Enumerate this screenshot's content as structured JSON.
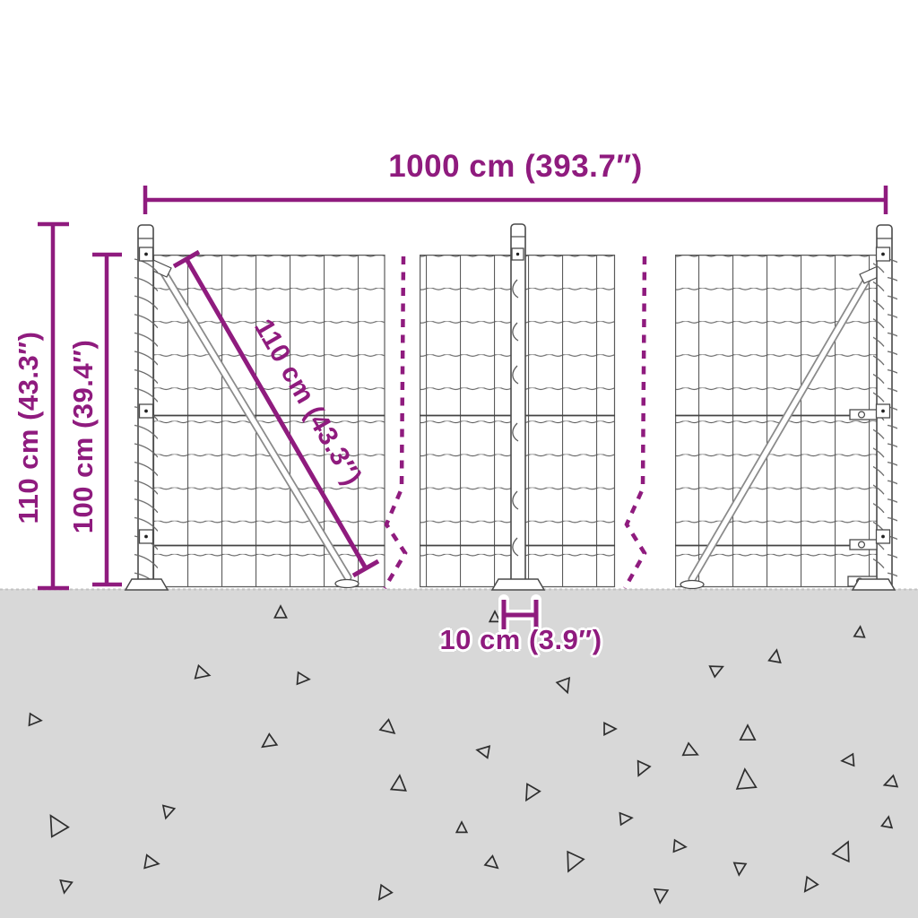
{
  "title": "Wire mesh fence dimension diagram",
  "colors": {
    "accent": "#8f1b7e",
    "ground": "#d8d8d8",
    "line_art": "#4a4a4a"
  },
  "labels": {
    "total_width": "1000 cm (393.7″)",
    "total_height": "110 cm (43.3″)",
    "mesh_height": "100 cm (39.4″)",
    "diagonal_brace": "110 cm (43.3″)",
    "base_plate_width": "10 cm (3.9″)"
  },
  "ground": {
    "triangles": [
      [
        313,
        684,
        8,
        0
      ],
      [
        552,
        689,
        7,
        0
      ],
      [
        225,
        751,
        9,
        105
      ],
      [
        337,
        757,
        8,
        95
      ],
      [
        630,
        764,
        9,
        160
      ],
      [
        865,
        733,
        8,
        10
      ],
      [
        959,
        706,
        7,
        5
      ],
      [
        799,
        747,
        8,
        65
      ],
      [
        38,
        803,
        8,
        95
      ],
      [
        433,
        812,
        9,
        130
      ],
      [
        300,
        828,
        9,
        235
      ],
      [
        679,
        813,
        8,
        90
      ],
      [
        834,
        819,
        10,
        0
      ],
      [
        540,
        838,
        8,
        280
      ],
      [
        947,
        848,
        8,
        265
      ],
      [
        770,
        838,
        9,
        115
      ],
      [
        716,
        857,
        9,
        205
      ],
      [
        832,
        871,
        13,
        355
      ],
      [
        592,
        884,
        10,
        210
      ],
      [
        445,
        875,
        10,
        5
      ],
      [
        187,
        905,
        8,
        195
      ],
      [
        63,
        921,
        13,
        330
      ],
      [
        168,
        962,
        9,
        100
      ],
      [
        515,
        924,
        7,
        0
      ],
      [
        549,
        963,
        8,
        130
      ],
      [
        639,
        961,
        12,
        205
      ],
      [
        697,
        913,
        8,
        85
      ],
      [
        757,
        944,
        8,
        95
      ],
      [
        825,
        968,
        8,
        185
      ],
      [
        903,
        987,
        9,
        215
      ],
      [
        941,
        950,
        12,
        25
      ],
      [
        737,
        998,
        9,
        185
      ],
      [
        428,
        996,
        9,
        215
      ],
      [
        73,
        988,
        8,
        190
      ],
      [
        990,
        918,
        7,
        10
      ],
      [
        994,
        873,
        8,
        250
      ]
    ]
  }
}
